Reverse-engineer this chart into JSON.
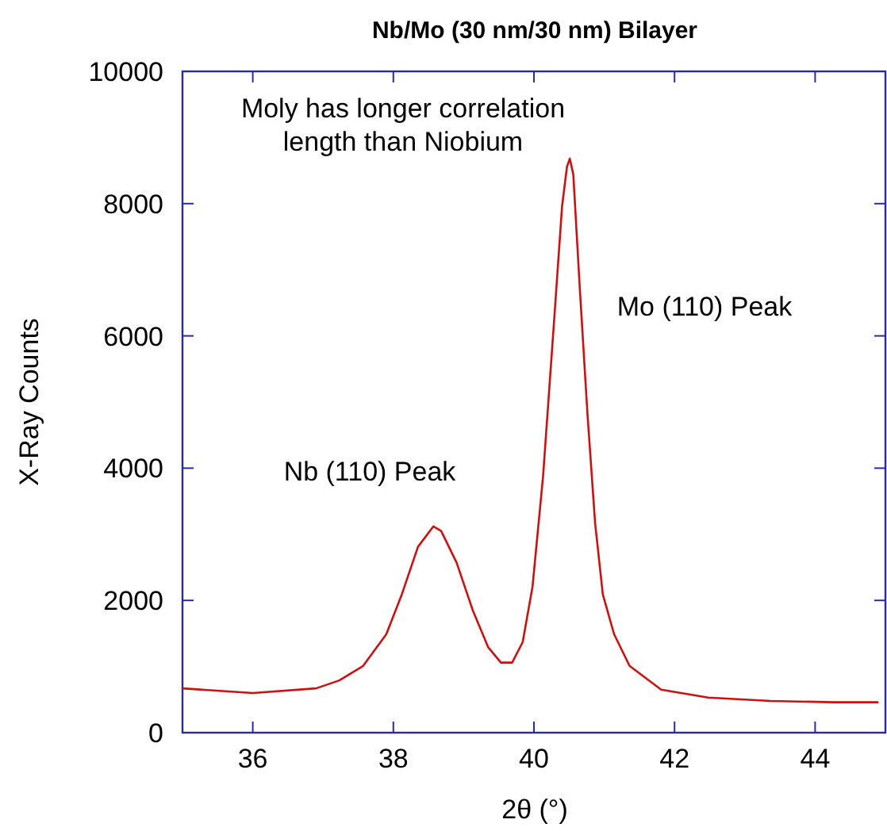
{
  "chart_data": {
    "type": "line",
    "title": "Nb/Mo (30 nm/30 nm) Bilayer",
    "xlabel": "2θ (°)",
    "ylabel": "X-Ray Counts",
    "x": [
      35,
      36,
      36.9,
      37.23,
      37.57,
      37.9,
      38.12,
      38.35,
      38.57,
      38.68,
      38.9,
      39.13,
      39.35,
      39.53,
      39.69,
      39.84,
      39.98,
      40.13,
      40.29,
      40.4,
      40.47,
      40.51,
      40.56,
      40.65,
      40.76,
      40.87,
      40.98,
      41.14,
      41.36,
      41.81,
      42.48,
      43.37,
      44.26,
      44.9
    ],
    "series": [
      {
        "color": "#cc1111",
        "values": [
          670,
          600,
          670,
          790,
          1010,
          1490,
          2090,
          2810,
          3120,
          3050,
          2570,
          1850,
          1290,
          1060,
          1060,
          1370,
          2210,
          3880,
          6280,
          7960,
          8560,
          8680,
          8440,
          6760,
          4840,
          3170,
          2090,
          1490,
          1010,
          650,
          530,
          480,
          460,
          460
        ]
      }
    ],
    "xlim": [
      35,
      45
    ],
    "xticks": [
      36,
      38,
      40,
      42,
      44
    ],
    "ylim": [
      0,
      10000
    ],
    "yticks": [
      0,
      2000,
      4000,
      6000,
      8000,
      10000
    ],
    "line_style": "solid",
    "grid": false,
    "annotations": [
      "Moly has longer correlation\nlength than Niobium",
      "Nb (110) Peak",
      "Mo (110) Peak"
    ]
  }
}
